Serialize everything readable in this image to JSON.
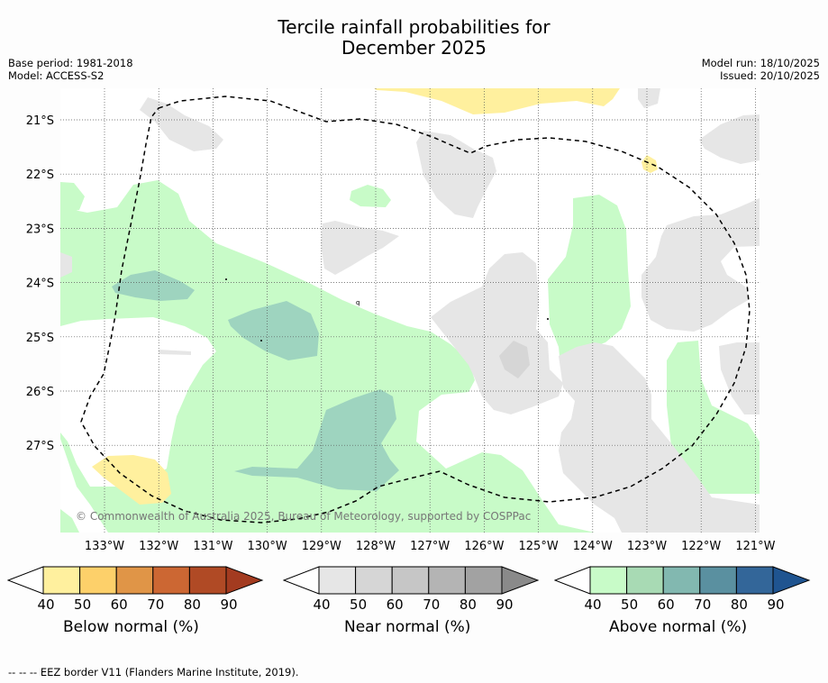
{
  "title_line1": "Tercile rainfall probabilities for",
  "title_line2": "December 2025",
  "base_period": "Base period: 1981-2018",
  "model": "Model: ACCESS-S2",
  "model_run": "Model run: 18/10/2025",
  "issued": "Issued: 20/10/2025",
  "lat_labels": [
    "21°S",
    "22°S",
    "23°S",
    "24°S",
    "25°S",
    "26°S",
    "27°S"
  ],
  "lon_labels": [
    "133°W",
    "132°W",
    "131°W",
    "130°W",
    "129°W",
    "128°W",
    "127°W",
    "126°W",
    "125°W",
    "124°W",
    "123°W",
    "122°W",
    "121°W"
  ],
  "copyright": "© Commonwealth of Australia 2025, Bureau of Meteorology, supported by COSPPac",
  "colorbars": [
    {
      "label": "Below normal (%)",
      "ticks": [
        "40",
        "50",
        "60",
        "70",
        "80",
        "90"
      ],
      "colors": [
        "#fff09e",
        "#fdd06a",
        "#e09547",
        "#cc6733",
        "#b04a25",
        "#a33b20"
      ]
    },
    {
      "label": "Near normal (%)",
      "ticks": [
        "40",
        "50",
        "60",
        "70",
        "80",
        "90"
      ],
      "colors": [
        "#e6e6e6",
        "#d6d6d6",
        "#c6c6c6",
        "#b4b4b4",
        "#a2a2a2",
        "#8a8a8a"
      ]
    },
    {
      "label": "Above normal (%)",
      "ticks": [
        "40",
        "50",
        "60",
        "70",
        "80",
        "90"
      ],
      "colors": [
        "#c8fbc8",
        "#a8dab4",
        "#82b8b0",
        "#5a90a0",
        "#336699",
        "#1f5490"
      ]
    }
  ],
  "footer": "--  --  -- EEZ border V11 (Flanders Marine Institute, 2019)."
}
